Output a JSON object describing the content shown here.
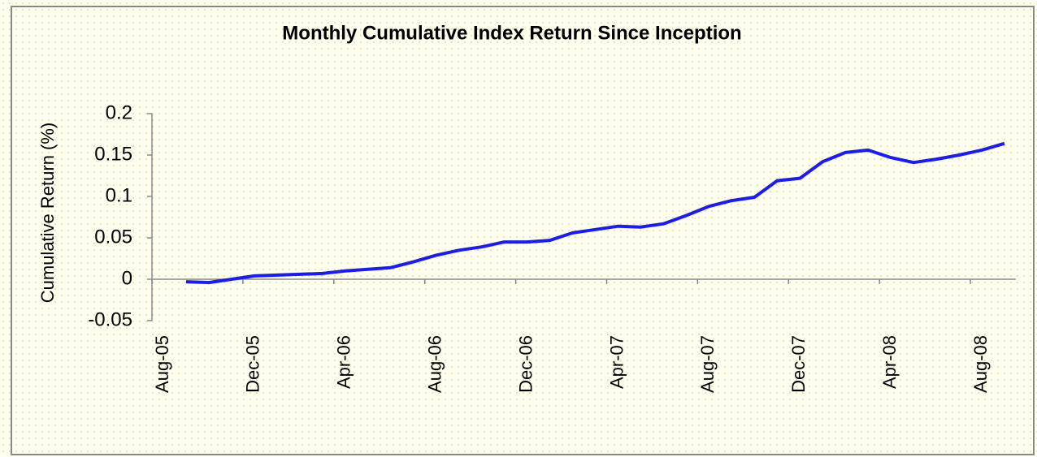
{
  "chart_data": {
    "type": "line",
    "title": "Monthly Cumulative Index Return Since Inception",
    "y_label": "Cumulative Return (%)",
    "categories": [
      "Aug-05",
      null,
      null,
      null,
      "Dec-05",
      null,
      null,
      null,
      "Apr-06",
      null,
      null,
      null,
      "Aug-06",
      null,
      null,
      null,
      "Dec-06",
      null,
      null,
      null,
      "Apr-07",
      null,
      null,
      null,
      "Aug-07",
      null,
      null,
      null,
      "Dec-07",
      null,
      null,
      null,
      "Apr-08",
      null,
      null,
      null,
      "Aug-08",
      null
    ],
    "series": [
      {
        "name": "Cumulative Return",
        "color": "#1a1aff",
        "values": [
          null,
          -0.003,
          -0.004,
          0.0,
          0.004,
          0.005,
          0.006,
          0.007,
          0.01,
          0.012,
          0.014,
          0.021,
          0.029,
          0.035,
          0.039,
          0.045,
          0.045,
          0.047,
          0.056,
          0.06,
          0.064,
          0.063,
          0.067,
          0.077,
          0.088,
          0.095,
          0.099,
          0.119,
          0.122,
          0.142,
          0.153,
          0.156,
          0.147,
          0.141,
          0.145,
          0.15,
          0.156,
          0.164
        ]
      }
    ],
    "ylim": [
      -0.05,
      0.2
    ],
    "yticks": [
      -0.05,
      0,
      0.05,
      0.1,
      0.15,
      0.2
    ]
  }
}
